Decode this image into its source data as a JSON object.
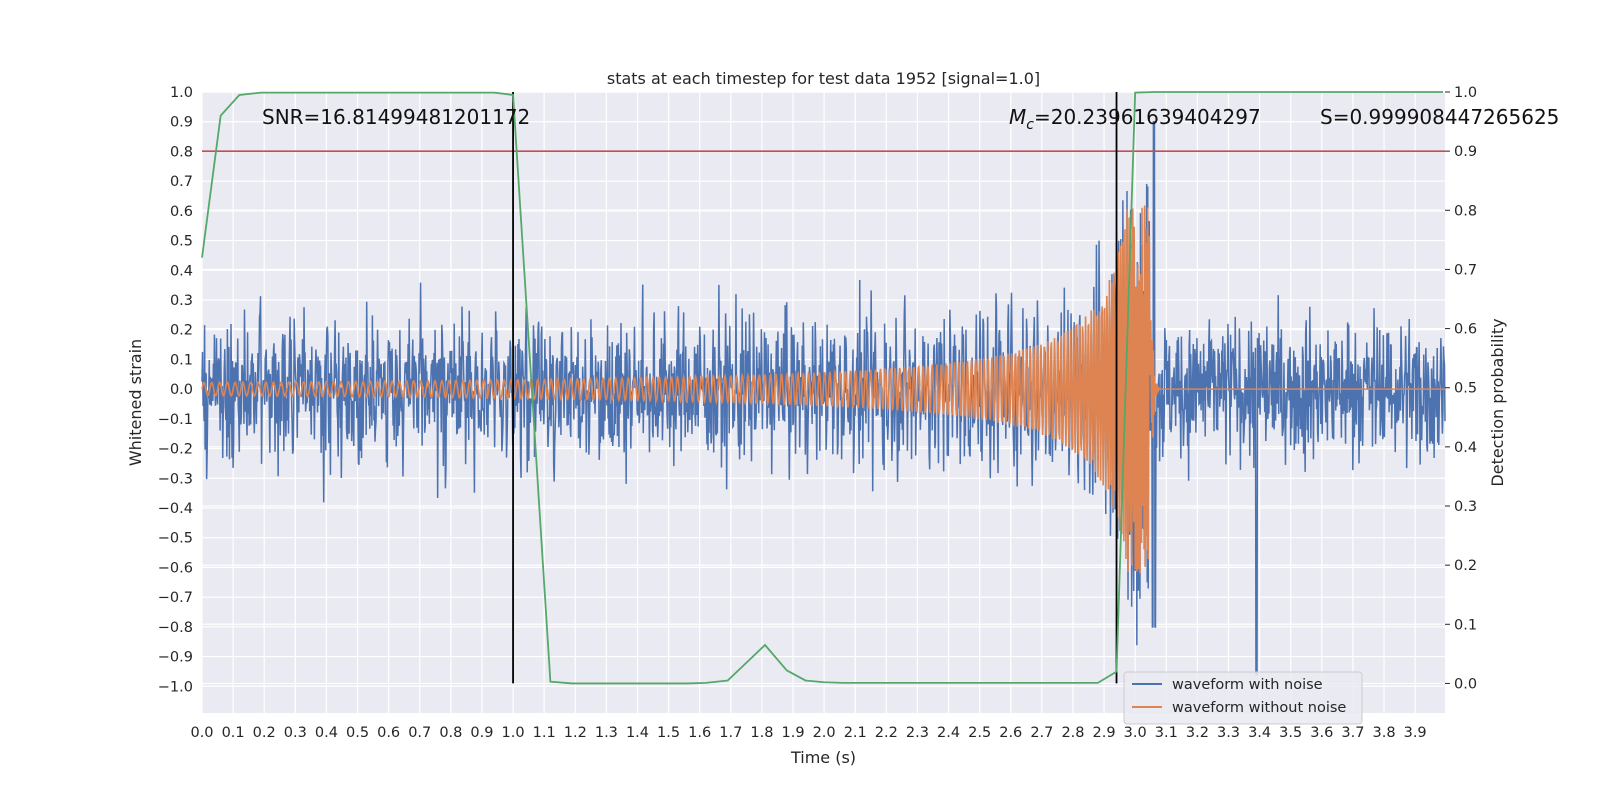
{
  "chart_data": {
    "type": "line",
    "title": "stats at each timestep for test data 1952 [signal=1.0]",
    "xlabel": "Time (s)",
    "ylabel": "Whitened strain",
    "y2label": "Detection probability",
    "xlim": [
      0.0,
      3.996
    ],
    "ylim": [
      -1.09,
      1.0
    ],
    "y2lim": [
      -0.05,
      1.0
    ],
    "xticks": [
      "0.0",
      "0.1",
      "0.2",
      "0.3",
      "0.4",
      "0.5",
      "0.6",
      "0.7",
      "0.8",
      "0.9",
      "1.0",
      "1.1",
      "1.2",
      "1.3",
      "1.4",
      "1.5",
      "1.6",
      "1.7",
      "1.8",
      "1.9",
      "2.0",
      "2.1",
      "2.2",
      "2.3",
      "2.4",
      "2.5",
      "2.6",
      "2.7",
      "2.8",
      "2.9",
      "3.0",
      "3.1",
      "3.2",
      "3.3",
      "3.4",
      "3.5",
      "3.6",
      "3.7",
      "3.8",
      "3.9"
    ],
    "yticks": [
      "1.0",
      "0.9",
      "0.8",
      "0.7",
      "0.6",
      "0.5",
      "0.4",
      "0.3",
      "0.2",
      "0.1",
      "0.0",
      "−0.1",
      "−0.2",
      "−0.3",
      "−0.4",
      "−0.5",
      "−0.6",
      "−0.7",
      "−0.8",
      "−0.9",
      "−1.0"
    ],
    "y2ticks": [
      "1.0",
      "0.9",
      "0.8",
      "0.7",
      "0.6",
      "0.5",
      "0.4",
      "0.3",
      "0.2",
      "0.1",
      "0.0"
    ],
    "annotations": {
      "snr": "SNR=16.81499481201172",
      "mc_symbol": "M",
      "mc_sub": "c",
      "mc_value": "=20.23961639404297",
      "s": "S=0.999908447265625"
    },
    "threshold_prob": 0.9,
    "vlines": [
      1.0,
      2.94
    ],
    "series": [
      {
        "name": "waveform with noise",
        "color": "#4c72b0",
        "description": "noisy whitened strain, roughly symmetric noise with std about 0.2, peaks near 0.9 at t=3.06 and dips to -0.95 at t=3.39"
      },
      {
        "name": "waveform without noise",
        "color": "#dd8452",
        "description": "chirp signal growing in amplitude and frequency, merger near t=3.05 with peak about 0.6, flat 0 after t=3.08"
      },
      {
        "name": "detection probability",
        "color": "#55a868",
        "axis": "right",
        "x": [
          0.0,
          0.06,
          0.12,
          0.19,
          0.25,
          0.31,
          0.38,
          0.44,
          0.5,
          0.56,
          0.62,
          0.69,
          0.75,
          0.81,
          0.88,
          0.94,
          1.0,
          1.06,
          1.12,
          1.19,
          1.25,
          1.31,
          1.38,
          1.44,
          1.5,
          1.56,
          1.62,
          1.69,
          1.75,
          1.81,
          1.88,
          1.94,
          2.0,
          2.06,
          2.12,
          2.19,
          2.25,
          2.31,
          2.38,
          2.44,
          2.5,
          2.56,
          2.62,
          2.69,
          2.75,
          2.81,
          2.88,
          2.94,
          3.0,
          3.06,
          3.12,
          3.19,
          3.25,
          3.31,
          3.38,
          3.44,
          3.5,
          3.56,
          3.62,
          3.69,
          3.75,
          3.81,
          3.88,
          3.94,
          3.99
        ],
        "values": [
          0.72,
          0.96,
          0.995,
          0.999,
          0.999,
          0.999,
          0.999,
          0.999,
          0.999,
          0.999,
          0.999,
          0.999,
          0.999,
          0.999,
          0.999,
          0.999,
          0.995,
          0.5,
          0.003,
          0.0,
          0.0,
          0.0,
          0.0,
          0.0,
          0.0,
          0.0,
          0.001,
          0.005,
          0.035,
          0.065,
          0.022,
          0.005,
          0.002,
          0.001,
          0.001,
          0.001,
          0.001,
          0.001,
          0.001,
          0.001,
          0.001,
          0.001,
          0.001,
          0.001,
          0.001,
          0.001,
          0.001,
          0.02,
          0.999,
          1.0,
          1.0,
          1.0,
          1.0,
          1.0,
          1.0,
          1.0,
          1.0,
          1.0,
          1.0,
          1.0,
          1.0,
          1.0,
          1.0,
          1.0,
          1.0
        ]
      }
    ],
    "legend": [
      "waveform with noise",
      "waveform without noise"
    ],
    "legend_loc": "lower-right",
    "colors": {
      "background": "#eaeaf2",
      "grid": "#ffffff",
      "threshold": "#c44e52",
      "vline": "#000000"
    }
  }
}
